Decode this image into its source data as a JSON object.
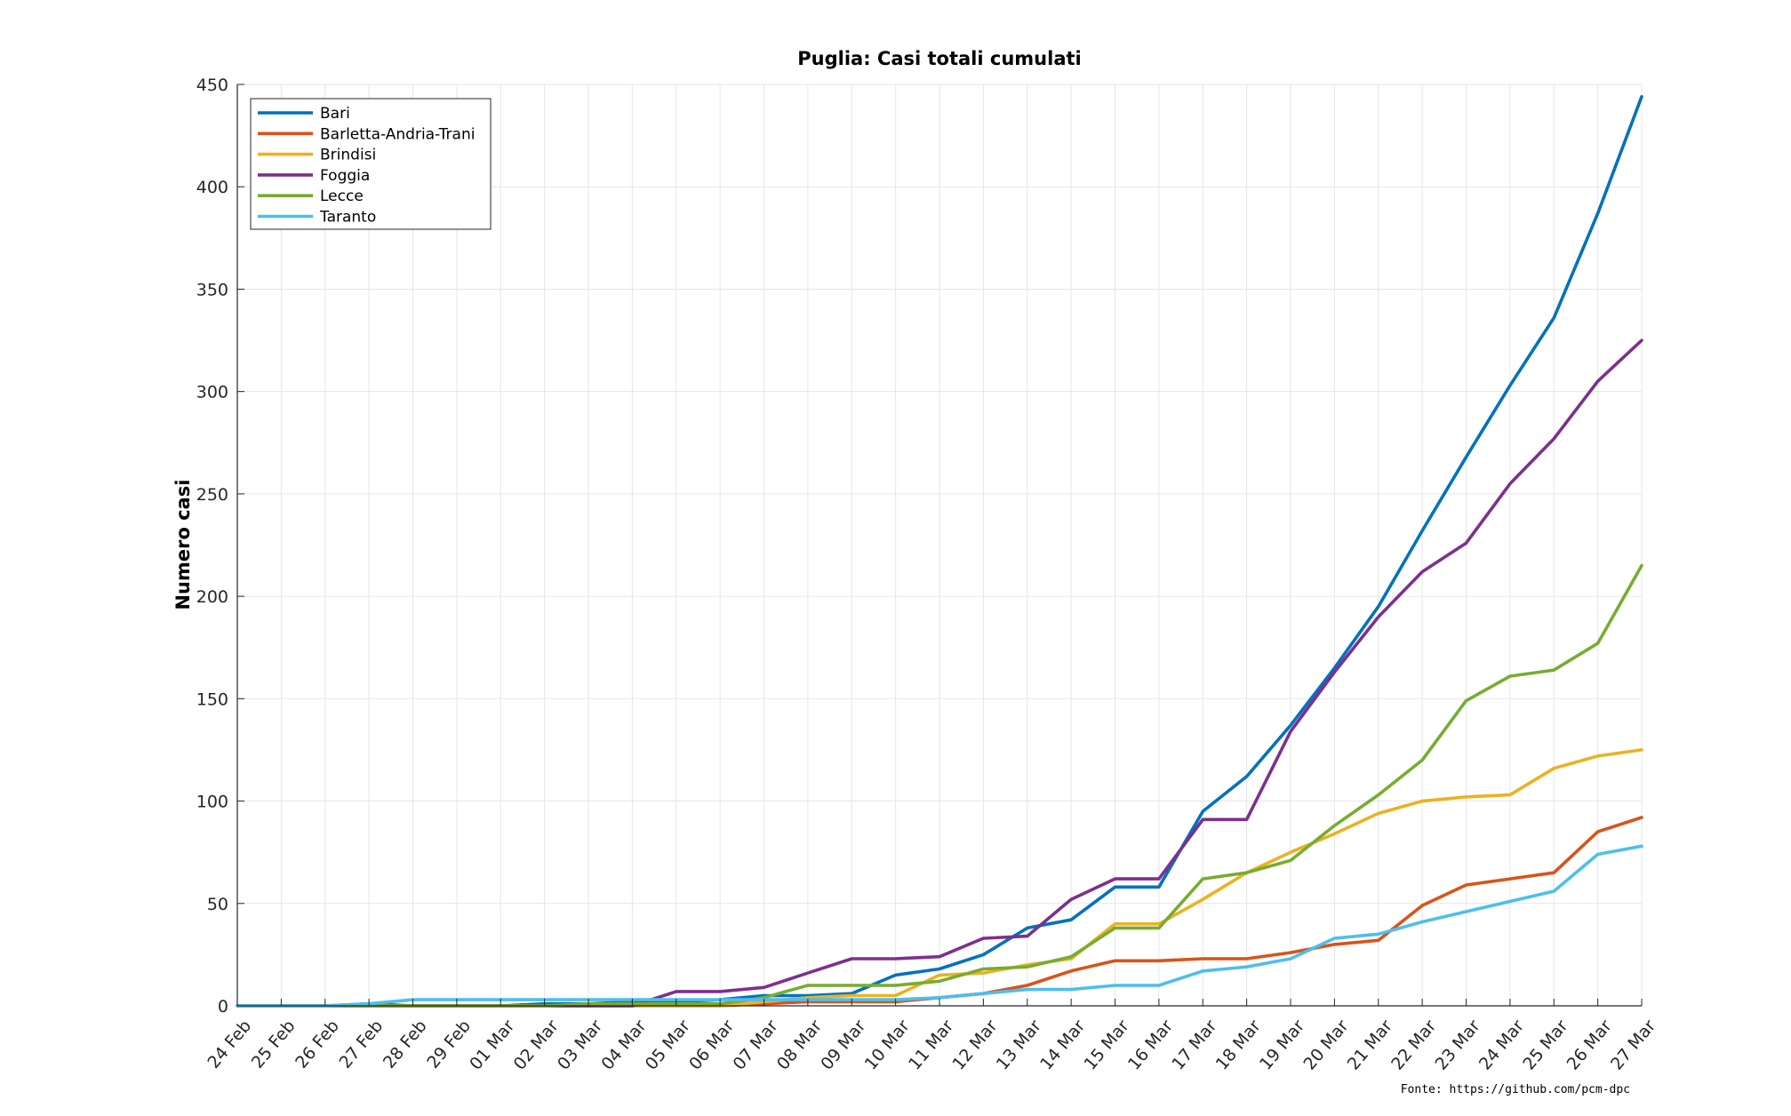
{
  "chart_data": {
    "type": "line",
    "title": "Puglia: Casi totali cumulati",
    "ylabel": "Numero casi",
    "xlabel": "",
    "source": "Fonte: https://github.com/pcm-dpc",
    "ylim": [
      0,
      450
    ],
    "yticks": [
      0,
      50,
      100,
      150,
      200,
      250,
      300,
      350,
      400,
      450
    ],
    "grid": true,
    "legend_position": "top-left",
    "categories": [
      "24 Feb",
      "25 Feb",
      "26 Feb",
      "27 Feb",
      "28 Feb",
      "29 Feb",
      "01 Mar",
      "02 Mar",
      "03 Mar",
      "04 Mar",
      "05 Mar",
      "06 Mar",
      "07 Mar",
      "08 Mar",
      "09 Mar",
      "10 Mar",
      "11 Mar",
      "12 Mar",
      "13 Mar",
      "14 Mar",
      "15 Mar",
      "16 Mar",
      "17 Mar",
      "18 Mar",
      "19 Mar",
      "20 Mar",
      "21 Mar",
      "22 Mar",
      "23 Mar",
      "24 Mar",
      "25 Mar",
      "26 Mar",
      "27 Mar"
    ],
    "series": [
      {
        "name": "Bari",
        "color": "#0072BD",
        "values": [
          0,
          0,
          0,
          1,
          0,
          0,
          0,
          1,
          1,
          2,
          2,
          3,
          5,
          5,
          6,
          15,
          18,
          25,
          38,
          42,
          58,
          58,
          95,
          112,
          137,
          165,
          195,
          232,
          268,
          303,
          336,
          387,
          444
        ]
      },
      {
        "name": "Barletta-Andria-Trani",
        "color": "#D95319",
        "values": [
          0,
          0,
          0,
          0,
          0,
          0,
          0,
          0,
          0,
          0,
          0,
          0,
          1,
          2,
          2,
          2,
          4,
          6,
          10,
          17,
          22,
          22,
          23,
          23,
          26,
          30,
          32,
          49,
          59,
          62,
          65,
          85,
          92
        ]
      },
      {
        "name": "Brindisi",
        "color": "#EDB120",
        "values": [
          0,
          0,
          0,
          0,
          0,
          0,
          0,
          0,
          0,
          0,
          0,
          0,
          2,
          4,
          5,
          5,
          15,
          16,
          20,
          23,
          40,
          40,
          52,
          65,
          75,
          84,
          94,
          100,
          102,
          103,
          116,
          122,
          125
        ]
      },
      {
        "name": "Foggia",
        "color": "#7E2F8E",
        "values": [
          0,
          0,
          0,
          0,
          0,
          0,
          0,
          0,
          0,
          0,
          7,
          7,
          9,
          16,
          23,
          23,
          24,
          33,
          34,
          52,
          62,
          62,
          91,
          91,
          134,
          163,
          190,
          212,
          226,
          255,
          277,
          305,
          325
        ]
      },
      {
        "name": "Lecce",
        "color": "#77AC30",
        "values": [
          0,
          0,
          0,
          0,
          0,
          0,
          0,
          0,
          1,
          1,
          1,
          1,
          4,
          10,
          10,
          10,
          12,
          18,
          19,
          24,
          38,
          38,
          62,
          65,
          71,
          88,
          103,
          120,
          149,
          161,
          164,
          177,
          215
        ]
      },
      {
        "name": "Taranto",
        "color": "#4DBEEE",
        "values": [
          0,
          0,
          0,
          1,
          3,
          3,
          3,
          3,
          3,
          3,
          3,
          3,
          3,
          3,
          3,
          3,
          4,
          6,
          8,
          8,
          10,
          10,
          17,
          19,
          23,
          33,
          35,
          41,
          46,
          51,
          56,
          74,
          78
        ]
      }
    ]
  }
}
